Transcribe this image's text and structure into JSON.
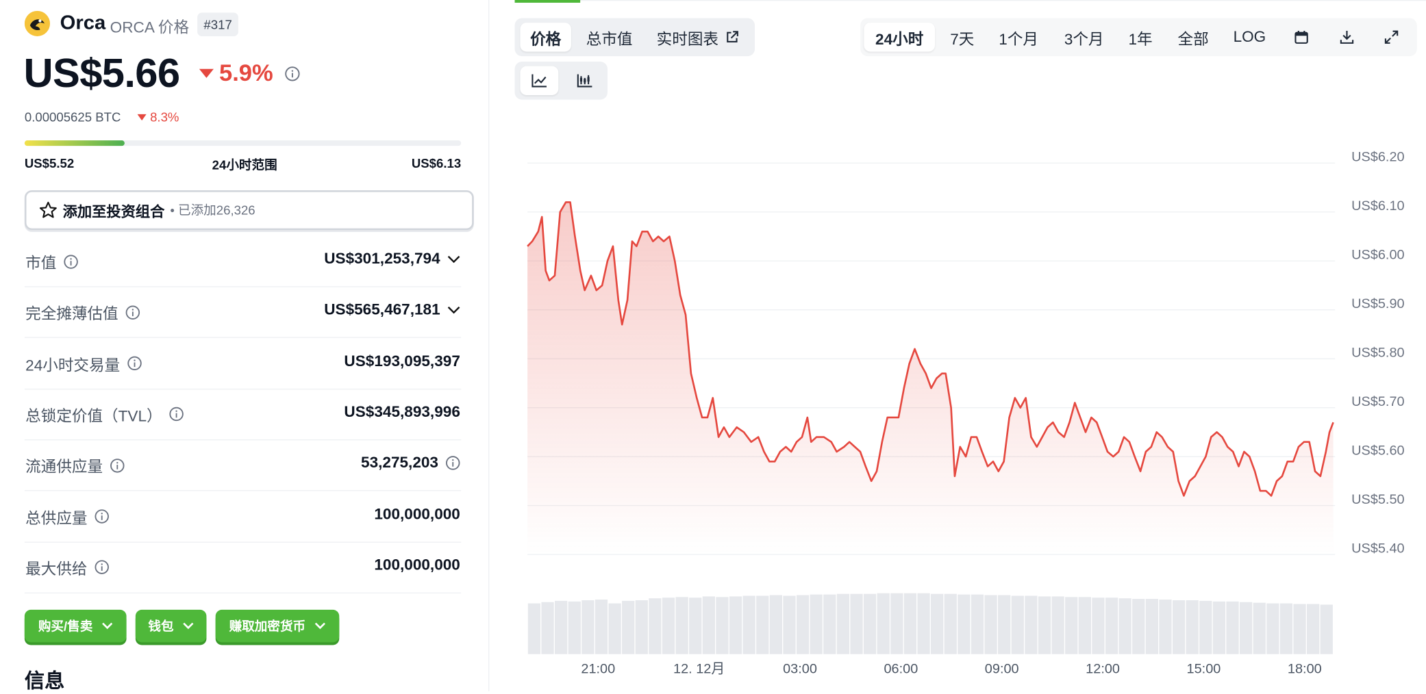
{
  "header": {
    "name": "Orca",
    "symbol": "ORCA 价格",
    "rank": "#317",
    "price": "US$5.66",
    "change": "5.9%",
    "btc_price": "0.00005625 BTC",
    "btc_change": "8.3%"
  },
  "range": {
    "low": "US$5.52",
    "label": "24小时范围",
    "high": "US$6.13",
    "fill_percent": 23
  },
  "portfolio": {
    "button": "添加至投资组合",
    "added": "• 已添加26,326"
  },
  "stats": [
    {
      "label": "市值",
      "value": "US$301,253,794"
    },
    {
      "label": "完全摊薄估值",
      "value": "US$565,467,181"
    },
    {
      "label": "24小时交易量",
      "value": "US$193,095,397"
    },
    {
      "label": "总锁定价值（TVL）",
      "value": "US$345,893,996"
    },
    {
      "label": "流通供应量",
      "value": "53,275,203"
    },
    {
      "label": "总供应量",
      "value": "100,000,000"
    },
    {
      "label": "最大供给",
      "value": "100,000,000"
    }
  ],
  "actions": [
    "购买/售卖",
    "钱包",
    "赚取加密货币"
  ],
  "section_title": "信息",
  "tabs": [
    "价格",
    "总市值",
    "实时图表"
  ],
  "ranges": [
    "24小时",
    "7天",
    "1个月",
    "3个月",
    "1年",
    "全部",
    "LOG"
  ],
  "chart_data": {
    "type": "area",
    "color": "#e5483f",
    "x": [
      18.9,
      19.04,
      19.22,
      19.33,
      19.44,
      19.55,
      19.71,
      19.87,
      20.04,
      20.17,
      20.31,
      20.47,
      20.6,
      20.79,
      20.95,
      21.12,
      21.28,
      21.44,
      21.6,
      21.71,
      21.87,
      22.01,
      22.14,
      22.31,
      22.47,
      22.63,
      22.79,
      22.95,
      23.12,
      23.28,
      23.44,
      23.6,
      23.76,
      23.93,
      24.09,
      24.25,
      24.41,
      24.58,
      24.74,
      24.9,
      25.12,
      25.33,
      25.55,
      25.76,
      25.93,
      26.09,
      26.25,
      26.41,
      26.58,
      26.74,
      26.9,
      27.06,
      27.22,
      27.33,
      27.49,
      27.71,
      27.93,
      28.09,
      28.31,
      28.47,
      28.63,
      28.79,
      28.95,
      29.12,
      29.28,
      29.44,
      29.6,
      29.76,
      29.93,
      30.09,
      30.25,
      30.41,
      30.58,
      30.74,
      30.9,
      31.06,
      31.22,
      31.33,
      31.49,
      31.6,
      31.76,
      31.93,
      32.09,
      32.25,
      32.41,
      32.58,
      32.74,
      32.9,
      33.06,
      33.22,
      33.39,
      33.55,
      33.71,
      33.87,
      34.04,
      34.2,
      34.36,
      34.52,
      34.68,
      34.85,
      35.01,
      35.17,
      35.33,
      35.49,
      35.66,
      35.82,
      35.98,
      36.14,
      36.31,
      36.47,
      36.63,
      36.79,
      36.95,
      37.12,
      37.28,
      37.44,
      37.6,
      37.76,
      37.93,
      38.09,
      38.25,
      38.41,
      38.58,
      38.74,
      38.9,
      39.06,
      39.22,
      39.39,
      39.55,
      39.71,
      39.87,
      40.04,
      40.2,
      40.36,
      40.52,
      40.68,
      40.85,
      41.01,
      41.17,
      41.33,
      41.49,
      41.66,
      41.82,
      41.98,
      42.14,
      42.31,
      42.47,
      42.63,
      42.74,
      42.85
    ],
    "values": [
      6.03,
      6.04,
      6.06,
      6.09,
      5.98,
      5.96,
      5.97,
      6.1,
      6.12,
      6.12,
      6.05,
      5.98,
      5.94,
      5.97,
      5.94,
      5.95,
      6.0,
      6.03,
      5.92,
      5.87,
      5.92,
      6.04,
      6.03,
      6.06,
      6.06,
      6.04,
      6.05,
      6.04,
      6.05,
      6.0,
      5.93,
      5.89,
      5.77,
      5.72,
      5.68,
      5.68,
      5.72,
      5.64,
      5.66,
      5.64,
      5.66,
      5.65,
      5.63,
      5.64,
      5.61,
      5.59,
      5.59,
      5.61,
      5.62,
      5.61,
      5.63,
      5.64,
      5.68,
      5.63,
      5.64,
      5.64,
      5.63,
      5.61,
      5.62,
      5.63,
      5.62,
      5.61,
      5.58,
      5.55,
      5.57,
      5.63,
      5.68,
      5.68,
      5.68,
      5.74,
      5.79,
      5.82,
      5.79,
      5.77,
      5.74,
      5.76,
      5.77,
      5.77,
      5.7,
      5.56,
      5.62,
      5.6,
      5.64,
      5.64,
      5.61,
      5.58,
      5.59,
      5.57,
      5.59,
      5.68,
      5.72,
      5.7,
      5.72,
      5.64,
      5.62,
      5.64,
      5.66,
      5.67,
      5.65,
      5.64,
      5.67,
      5.71,
      5.68,
      5.65,
      5.68,
      5.67,
      5.64,
      5.61,
      5.6,
      5.61,
      5.64,
      5.63,
      5.6,
      5.57,
      5.61,
      5.62,
      5.65,
      5.64,
      5.62,
      5.61,
      5.55,
      5.52,
      5.55,
      5.56,
      5.58,
      5.6,
      5.64,
      5.65,
      5.64,
      5.62,
      5.61,
      5.58,
      5.61,
      5.6,
      5.57,
      5.53,
      5.53,
      5.52,
      5.55,
      5.56,
      5.59,
      5.59,
      5.62,
      5.63,
      5.63,
      5.57,
      5.56,
      5.61,
      5.65,
      5.67
    ],
    "xlim": [
      18.9,
      42.85
    ],
    "ylim": [
      5.4,
      6.2
    ],
    "yticks": [
      {
        "value": 5.4,
        "label": "US$5.40"
      },
      {
        "value": 5.5,
        "label": "US$5.50"
      },
      {
        "value": 5.6,
        "label": "US$5.60"
      },
      {
        "value": 5.7,
        "label": "US$5.70"
      },
      {
        "value": 5.8,
        "label": "US$5.80"
      },
      {
        "value": 5.9,
        "label": "US$5.90"
      },
      {
        "value": 6.0,
        "label": "US$6.00"
      },
      {
        "value": 6.1,
        "label": "US$6.10"
      },
      {
        "value": 6.2,
        "label": "US$6.20"
      }
    ],
    "xticks": [
      {
        "value": 21,
        "label": "21:00"
      },
      {
        "value": 24,
        "label": "12. 12月"
      },
      {
        "value": 27,
        "label": "03:00"
      },
      {
        "value": 30,
        "label": "06:00"
      },
      {
        "value": 33,
        "label": "09:00"
      },
      {
        "value": 36,
        "label": "12:00"
      },
      {
        "value": 39,
        "label": "15:00"
      },
      {
        "value": 42,
        "label": "18:00"
      }
    ],
    "grid": true,
    "volume": {
      "color": "#e6e8ec",
      "values": [
        80,
        82,
        84,
        83,
        85,
        86,
        80,
        84,
        85,
        88,
        89,
        90,
        89,
        91,
        90,
        91,
        92,
        92,
        93,
        92,
        93,
        94,
        94,
        95,
        95,
        95,
        96,
        96,
        96,
        96,
        95,
        95,
        94,
        94,
        93,
        93,
        92,
        92,
        91,
        91,
        90,
        90,
        89,
        89,
        88,
        87,
        87,
        86,
        85,
        85,
        84,
        83,
        83,
        82,
        81,
        80,
        80,
        79,
        79,
        78
      ]
    }
  }
}
